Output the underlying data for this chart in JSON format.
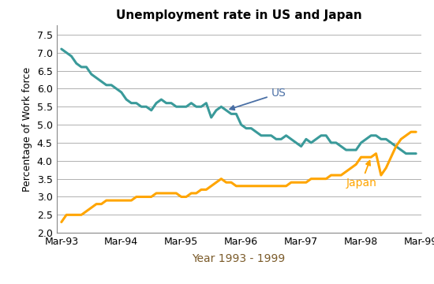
{
  "title": "Unemployment rate in US and Japan",
  "xlabel": "Year 1993 - 1999",
  "ylabel": "Percentage of Work force",
  "ylim": [
    2.0,
    7.75
  ],
  "yticks": [
    2.0,
    2.5,
    3.0,
    3.5,
    4.0,
    4.5,
    5.0,
    5.5,
    6.0,
    6.5,
    7.0,
    7.5
  ],
  "us_color": "#3A9A9A",
  "japan_color": "#FFA500",
  "annotation_color_us": "#4A6FA5",
  "annotation_color_japan": "#FFA500",
  "xlabel_color": "#8B6914",
  "us_data": [
    7.1,
    7.0,
    6.9,
    6.7,
    6.6,
    6.6,
    6.4,
    6.3,
    6.2,
    6.1,
    6.1,
    6.0,
    5.9,
    5.7,
    5.6,
    5.6,
    5.5,
    5.5,
    5.4,
    5.6,
    5.7,
    5.6,
    5.6,
    5.5,
    5.5,
    5.5,
    5.6,
    5.5,
    5.5,
    5.6,
    5.2,
    5.4,
    5.5,
    5.4,
    5.3,
    5.3,
    5.0,
    4.9,
    4.9,
    4.8,
    4.7,
    4.7,
    4.7,
    4.6,
    4.6,
    4.7,
    4.6,
    4.5,
    4.4,
    4.6,
    4.5,
    4.6,
    4.7,
    4.7,
    4.5,
    4.5,
    4.4,
    4.3,
    4.3,
    4.3,
    4.5,
    4.6,
    4.7,
    4.7,
    4.6,
    4.6,
    4.5,
    4.4,
    4.3,
    4.2,
    4.2,
    4.2
  ],
  "japan_data": [
    2.3,
    2.5,
    2.5,
    2.5,
    2.5,
    2.6,
    2.7,
    2.8,
    2.8,
    2.9,
    2.9,
    2.9,
    2.9,
    2.9,
    2.9,
    3.0,
    3.0,
    3.0,
    3.0,
    3.1,
    3.1,
    3.1,
    3.1,
    3.1,
    3.0,
    3.0,
    3.1,
    3.1,
    3.2,
    3.2,
    3.3,
    3.4,
    3.5,
    3.4,
    3.4,
    3.3,
    3.3,
    3.3,
    3.3,
    3.3,
    3.3,
    3.3,
    3.3,
    3.3,
    3.3,
    3.3,
    3.4,
    3.4,
    3.4,
    3.4,
    3.5,
    3.5,
    3.5,
    3.5,
    3.6,
    3.6,
    3.6,
    3.7,
    3.8,
    3.9,
    4.1,
    4.1,
    4.1,
    4.2,
    3.6,
    3.8,
    4.1,
    4.4,
    4.6,
    4.7,
    4.8,
    4.8
  ],
  "x_tick_positions": [
    0,
    12,
    24,
    36,
    48,
    60,
    72
  ],
  "x_tick_labels": [
    "Mar-93",
    "Mar-94",
    "Mar-95",
    "Mar-96",
    "Mar-97",
    "Mar-98",
    "Mar-99"
  ],
  "background_color": "#ffffff",
  "grid_color": "#b0b0b0"
}
